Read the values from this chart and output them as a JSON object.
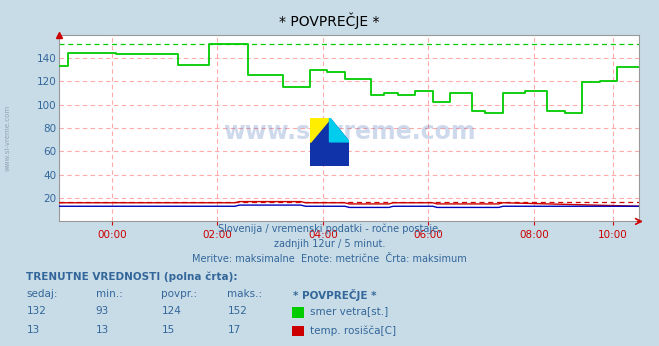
{
  "title": "* POVPREČJE *",
  "background_color": "#c8dce8",
  "plot_bg_color": "#ffffff",
  "ylim": [
    0,
    160
  ],
  "xlim_min": 0,
  "xlim_max": 132,
  "yticks": [
    20,
    40,
    60,
    80,
    100,
    120,
    140
  ],
  "xtick_labels": [
    "00:00",
    "02:00",
    "04:00",
    "06:00",
    "08:00",
    "10:00"
  ],
  "xtick_positions": [
    12,
    36,
    60,
    84,
    108,
    126
  ],
  "dashed_line_green_y": 152,
  "dashed_line_red_y": 17,
  "green_line_color": "#00cc00",
  "red_line_color": "#cc0000",
  "blue_line_color": "#0000bb",
  "subtitle_line1": "Slovenija / vremenski podatki - ročne postaje,",
  "subtitle_line2": "zadnjih 12ur / 5 minut.",
  "subtitle_line3": "Meritve: maksimalne  Enote: metrične  Črta: maksimum",
  "table_title": "TRENUTNE VREDNOSTI (polna črta):",
  "table_headers": [
    "sedaj:",
    "min.:",
    "povpr.:",
    "maks.:",
    "* POVPREČJE *"
  ],
  "table_row1": [
    "132",
    "93",
    "124",
    "152",
    "smer vetra[st.]"
  ],
  "table_row2": [
    "13",
    "13",
    "15",
    "17",
    "temp. rosišča[C]"
  ],
  "green_x": [
    0,
    1,
    2,
    12,
    13,
    26,
    27,
    33,
    34,
    42,
    43,
    50,
    51,
    56,
    57,
    60,
    61,
    64,
    65,
    70,
    71,
    73,
    74,
    76,
    77,
    80,
    81,
    84,
    85,
    88,
    89,
    93,
    94,
    96,
    97,
    100,
    101,
    105,
    106,
    110,
    111,
    114,
    115,
    118,
    119,
    122,
    123,
    126,
    127,
    132
  ],
  "green_y": [
    133,
    133,
    144,
    144,
    143,
    143,
    134,
    134,
    152,
    152,
    125,
    125,
    115,
    115,
    130,
    130,
    128,
    128,
    122,
    122,
    108,
    108,
    110,
    110,
    108,
    108,
    112,
    112,
    102,
    102,
    110,
    110,
    95,
    95,
    93,
    93,
    110,
    110,
    112,
    112,
    95,
    95,
    93,
    93,
    119,
    119,
    120,
    120,
    132,
    132
  ],
  "red_x": [
    0,
    40,
    41,
    55,
    56,
    65,
    66,
    75,
    76,
    85,
    86,
    100,
    101,
    132
  ],
  "red_y": [
    16,
    16,
    17,
    17,
    16,
    16,
    15,
    15,
    16,
    16,
    15,
    15,
    16,
    13
  ],
  "blue_x": [
    0,
    40,
    41,
    55,
    56,
    65,
    66,
    75,
    76,
    85,
    86,
    100,
    101,
    132
  ],
  "blue_y": [
    13,
    13,
    14,
    14,
    13,
    13,
    12,
    12,
    13,
    13,
    12,
    12,
    13,
    13
  ],
  "watermark": "www.si-vreme.com",
  "side_watermark": "www.si-vreme.com",
  "text_color": "#336699",
  "title_color": "#000000"
}
